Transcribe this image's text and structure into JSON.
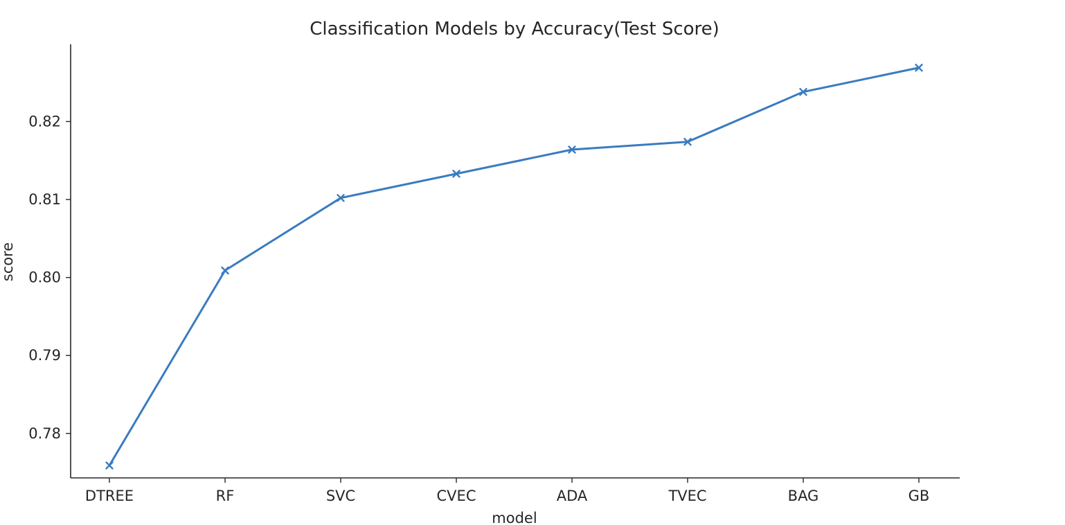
{
  "chart_data": {
    "type": "line",
    "title": "Classification Models by Accuracy(Test Score)",
    "xlabel": "model",
    "ylabel": "score",
    "categories": [
      "DTREE",
      "RF",
      "SVC",
      "CVEC",
      "ADA",
      "TVEC",
      "BAG",
      "GB"
    ],
    "series": [
      {
        "values": [
          0.7759,
          0.8009,
          0.8102,
          0.8133,
          0.8164,
          0.8174,
          0.8238,
          0.8269
        ],
        "color": "#3a7bbf",
        "marker": "x"
      }
    ],
    "ylim": [
      0.7743,
      0.8299
    ],
    "yticks": [
      0.78,
      0.79,
      0.8,
      0.81,
      0.82
    ],
    "ytick_labels": [
      "0.78",
      "0.79",
      "0.80",
      "0.81",
      "0.82"
    ],
    "grid": false,
    "spines": "left-bottom"
  }
}
